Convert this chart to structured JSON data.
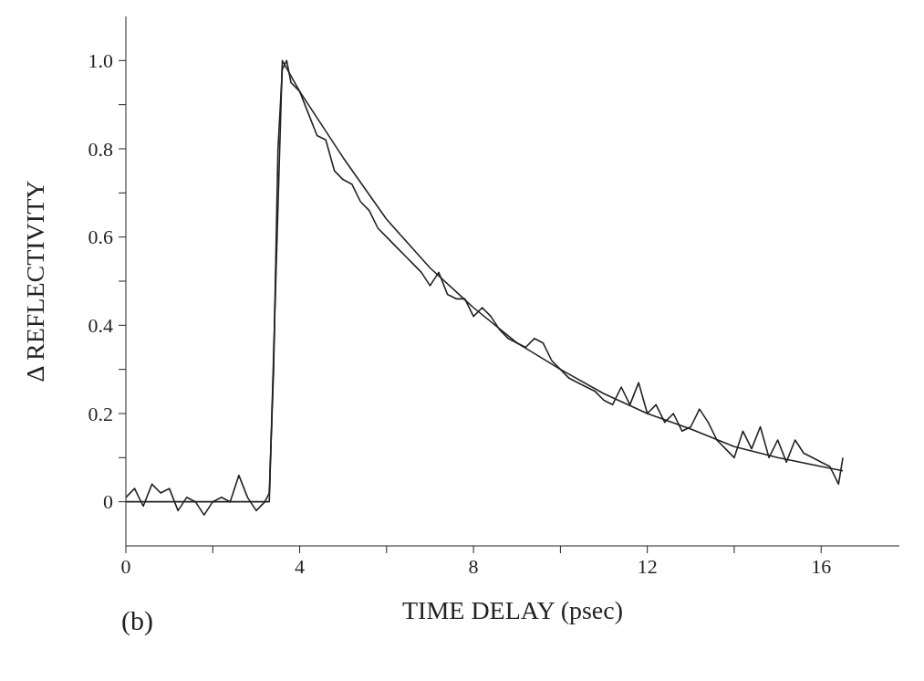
{
  "chart_data": {
    "type": "line",
    "xlabel": "TIME DELAY (psec)",
    "ylabel": "Δ REFLECTIVITY",
    "annotations": [
      "(b)"
    ],
    "xlim": [
      0,
      17.8
    ],
    "ylim": [
      -0.1,
      1.1
    ],
    "xticks": [
      0,
      {
        "value": 2,
        "label": null
      },
      4,
      {
        "value": 6,
        "label": null
      },
      8,
      {
        "value": 10,
        "label": null
      },
      12,
      {
        "value": 14,
        "label": null
      },
      16
    ],
    "yticks": [
      0,
      {
        "value": 0.1,
        "label": null
      },
      0.2,
      {
        "value": 0.3,
        "label": null
      },
      0.4,
      {
        "value": 0.5,
        "label": null
      },
      0.6,
      {
        "value": 0.7,
        "label": null
      },
      0.8,
      {
        "value": 0.9,
        "label": null
      },
      {
        "value": 1,
        "label": "1.0"
      }
    ],
    "grid": false,
    "legend": false,
    "marker": "none",
    "line_style": "solid",
    "series": [
      {
        "color": "#222222",
        "x": [
          0,
          0.2,
          0.4,
          0.6,
          0.8,
          1.0,
          1.2,
          1.4,
          1.6,
          1.8,
          2.0,
          2.2,
          2.4,
          2.6,
          2.8,
          3.0,
          3.2,
          3.3,
          3.4,
          3.5,
          3.6,
          3.7,
          3.8,
          4.0,
          4.2,
          4.4,
          4.6,
          4.8,
          5.0,
          5.2,
          5.4,
          5.6,
          5.8,
          6.0,
          6.2,
          6.4,
          6.6,
          6.8,
          7.0,
          7.2,
          7.4,
          7.6,
          7.8,
          8.0,
          8.2,
          8.4,
          8.6,
          8.8,
          9.0,
          9.2,
          9.4,
          9.6,
          9.8,
          10.0,
          10.2,
          10.4,
          10.6,
          10.8,
          11.0,
          11.2,
          11.4,
          11.6,
          11.8,
          12.0,
          12.2,
          12.4,
          12.6,
          12.8,
          13.0,
          13.2,
          13.4,
          13.6,
          13.8,
          14.0,
          14.2,
          14.4,
          14.6,
          14.8,
          15.0,
          15.2,
          15.4,
          15.6,
          15.8,
          16.0,
          16.2,
          16.4,
          16.5
        ],
        "values": [
          0.01,
          0.03,
          -0.01,
          0.04,
          0.02,
          0.03,
          -0.02,
          0.01,
          0.0,
          -0.03,
          0.0,
          0.01,
          0.0,
          0.06,
          0.01,
          -0.02,
          0.0,
          0.02,
          0.3,
          0.8,
          0.98,
          1.0,
          0.95,
          0.93,
          0.88,
          0.83,
          0.82,
          0.75,
          0.73,
          0.72,
          0.68,
          0.66,
          0.62,
          0.6,
          0.58,
          0.56,
          0.54,
          0.52,
          0.49,
          0.52,
          0.47,
          0.46,
          0.46,
          0.42,
          0.44,
          0.42,
          0.39,
          0.37,
          0.36,
          0.35,
          0.37,
          0.36,
          0.32,
          0.3,
          0.28,
          0.27,
          0.26,
          0.25,
          0.23,
          0.22,
          0.26,
          0.22,
          0.27,
          0.2,
          0.22,
          0.18,
          0.2,
          0.16,
          0.17,
          0.21,
          0.18,
          0.14,
          0.12,
          0.1,
          0.16,
          0.12,
          0.17,
          0.1,
          0.14,
          0.09,
          0.14,
          0.11,
          0.1,
          0.09,
          0.08,
          0.04,
          0.1
        ]
      },
      {
        "color": "#222222",
        "x": [
          0,
          1,
          2,
          3,
          3.3,
          3.45,
          3.6,
          4,
          5,
          6,
          7,
          8,
          9,
          10,
          11,
          12,
          13,
          14,
          15,
          16,
          16.5
        ],
        "values": [
          0,
          0,
          0,
          0,
          0,
          0.5,
          1.0,
          0.93,
          0.78,
          0.64,
          0.53,
          0.44,
          0.36,
          0.3,
          0.245,
          0.2,
          0.165,
          0.125,
          0.1,
          0.08,
          0.07
        ]
      }
    ]
  }
}
